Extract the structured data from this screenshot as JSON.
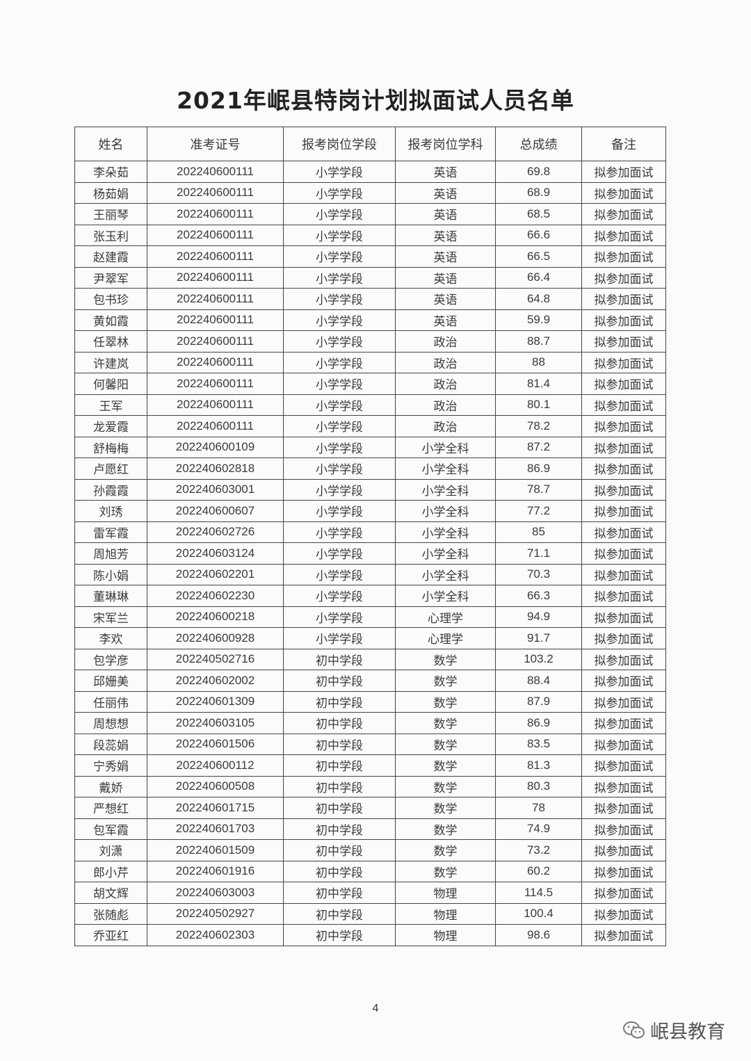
{
  "title": "2021年岷县特岗计划拟面试人员名单",
  "headers": [
    "姓名",
    "准考证号",
    "报考岗位学段",
    "报考岗位学科",
    "总成绩",
    "备注"
  ],
  "rows": [
    [
      "李朵茹",
      "202240600111",
      "小学学段",
      "英语",
      "69.8",
      "拟参加面试"
    ],
    [
      "杨茹娟",
      "202240600111",
      "小学学段",
      "英语",
      "68.9",
      "拟参加面试"
    ],
    [
      "王丽琴",
      "202240600111",
      "小学学段",
      "英语",
      "68.5",
      "拟参加面试"
    ],
    [
      "张玉利",
      "202240600111",
      "小学学段",
      "英语",
      "66.6",
      "拟参加面试"
    ],
    [
      "赵建霞",
      "202240600111",
      "小学学段",
      "英语",
      "66.5",
      "拟参加面试"
    ],
    [
      "尹翠军",
      "202240600111",
      "小学学段",
      "英语",
      "66.4",
      "拟参加面试"
    ],
    [
      "包书珍",
      "202240600111",
      "小学学段",
      "英语",
      "64.8",
      "拟参加面试"
    ],
    [
      "黄如霞",
      "202240600111",
      "小学学段",
      "英语",
      "59.9",
      "拟参加面试"
    ],
    [
      "任翠林",
      "202240600111",
      "小学学段",
      "政治",
      "88.7",
      "拟参加面试"
    ],
    [
      "许建岚",
      "202240600111",
      "小学学段",
      "政治",
      "88",
      "拟参加面试"
    ],
    [
      "何馨阳",
      "202240600111",
      "小学学段",
      "政治",
      "81.4",
      "拟参加面试"
    ],
    [
      "王军",
      "202240600111",
      "小学学段",
      "政治",
      "80.1",
      "拟参加面试"
    ],
    [
      "龙爱霞",
      "202240600111",
      "小学学段",
      "政治",
      "78.2",
      "拟参加面试"
    ],
    [
      "舒梅梅",
      "202240600109",
      "小学学段",
      "小学全科",
      "87.2",
      "拟参加面试"
    ],
    [
      "卢愿红",
      "202240602818",
      "小学学段",
      "小学全科",
      "86.9",
      "拟参加面试"
    ],
    [
      "孙霞霞",
      "202240603001",
      "小学学段",
      "小学全科",
      "78.7",
      "拟参加面试"
    ],
    [
      "刘琇",
      "202240600607",
      "小学学段",
      "小学全科",
      "77.2",
      "拟参加面试"
    ],
    [
      "雷军霞",
      "202240602726",
      "小学学段",
      "小学全科",
      "85",
      "拟参加面试"
    ],
    [
      "周旭芳",
      "202240603124",
      "小学学段",
      "小学全科",
      "71.1",
      "拟参加面试"
    ],
    [
      "陈小娟",
      "202240602201",
      "小学学段",
      "小学全科",
      "70.3",
      "拟参加面试"
    ],
    [
      "董琳琳",
      "202240602230",
      "小学学段",
      "小学全科",
      "66.3",
      "拟参加面试"
    ],
    [
      "宋军兰",
      "202240600218",
      "小学学段",
      "心理学",
      "94.9",
      "拟参加面试"
    ],
    [
      "李欢",
      "202240600928",
      "小学学段",
      "心理学",
      "91.7",
      "拟参加面试"
    ],
    [
      "包学彦",
      "202240502716",
      "初中学段",
      "数学",
      "103.2",
      "拟参加面试"
    ],
    [
      "邱姗美",
      "202240602002",
      "初中学段",
      "数学",
      "88.4",
      "拟参加面试"
    ],
    [
      "任丽伟",
      "202240601309",
      "初中学段",
      "数学",
      "87.9",
      "拟参加面试"
    ],
    [
      "周想想",
      "202240603105",
      "初中学段",
      "数学",
      "86.9",
      "拟参加面试"
    ],
    [
      "段蕊娟",
      "202240601506",
      "初中学段",
      "数学",
      "83.5",
      "拟参加面试"
    ],
    [
      "宁秀娟",
      "202240600112",
      "初中学段",
      "数学",
      "81.3",
      "拟参加面试"
    ],
    [
      "戴娇",
      "202240600508",
      "初中学段",
      "数学",
      "80.3",
      "拟参加面试"
    ],
    [
      "严想红",
      "202240601715",
      "初中学段",
      "数学",
      "78",
      "拟参加面试"
    ],
    [
      "包军霞",
      "202240601703",
      "初中学段",
      "数学",
      "74.9",
      "拟参加面试"
    ],
    [
      "刘潇",
      "202240601509",
      "初中学段",
      "数学",
      "73.2",
      "拟参加面试"
    ],
    [
      "郎小芹",
      "202240601916",
      "初中学段",
      "数学",
      "60.2",
      "拟参加面试"
    ],
    [
      "胡文辉",
      "202240603003",
      "初中学段",
      "物理",
      "114.5",
      "拟参加面试"
    ],
    [
      "张随彪",
      "202240502927",
      "初中学段",
      "物理",
      "100.4",
      "拟参加面试"
    ],
    [
      "乔亚红",
      "202240602303",
      "初中学段",
      "物理",
      "98.6",
      "拟参加面试"
    ]
  ],
  "page_number": "4",
  "watermark": {
    "text": "岷县教育",
    "icon": "wechat-icon"
  }
}
